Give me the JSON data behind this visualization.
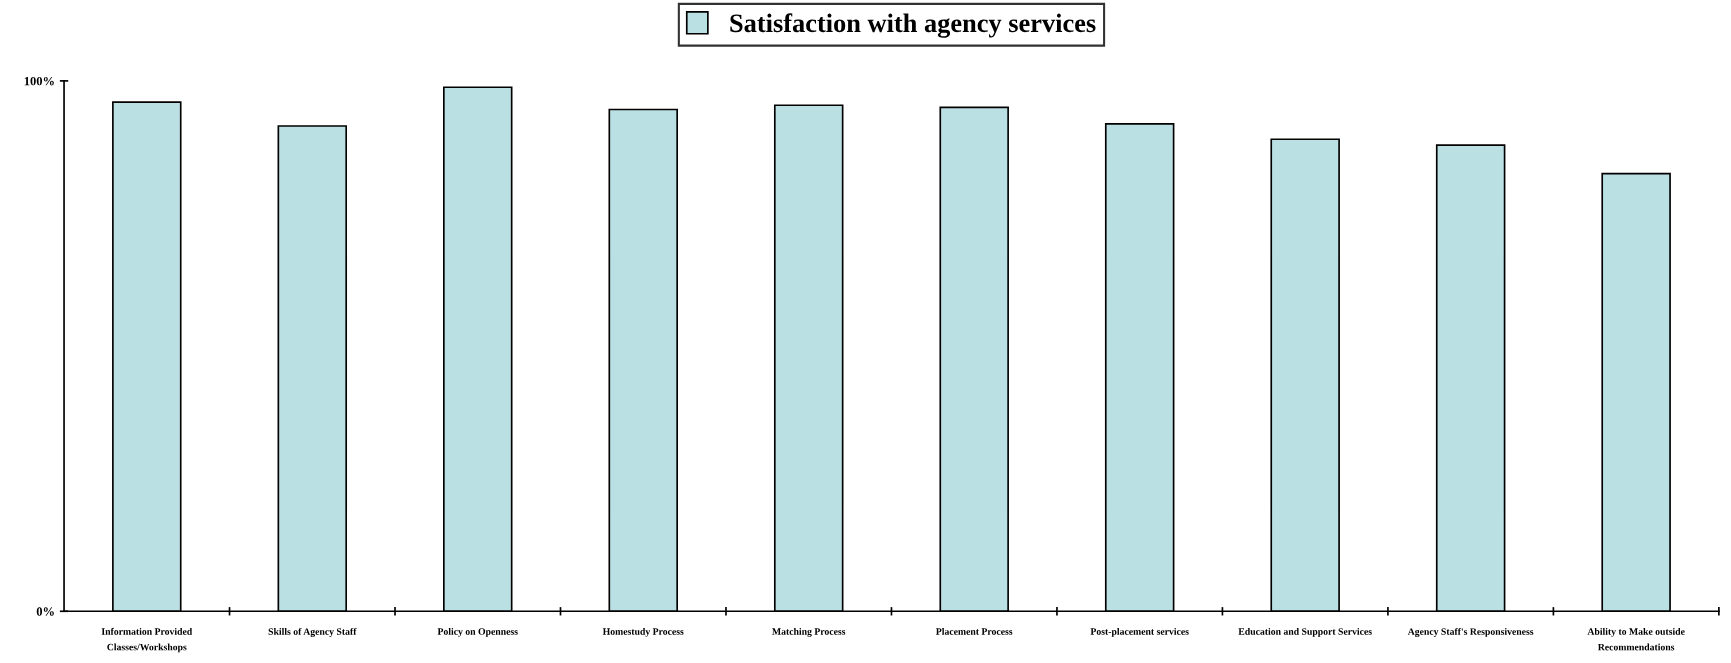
{
  "chart_data": {
    "type": "bar",
    "categories": [
      "Information Provided\nClasses/Workshops",
      "Skills of Agency Staff",
      "Policy on Openness",
      "Homestudy Process",
      "Matching Process",
      "Placement Process",
      "Post-placement services",
      "Education and Support Services",
      "Agency Staff's Responsiveness",
      "Ability to Make outside\nRecommendations"
    ],
    "series": [
      {
        "name": "Satisfaction with agency services",
        "color": "#bbe0e3",
        "values": [
          96,
          91.5,
          98.8,
          94.6,
          95.4,
          95,
          91.9,
          89,
          87.9,
          82.5
        ]
      }
    ],
    "ylim": [
      0,
      100
    ],
    "yticks": [
      {
        "value": 0,
        "label": "0%"
      },
      {
        "value": 100,
        "label": "100%"
      }
    ],
    "grid": false,
    "legend": "top"
  }
}
